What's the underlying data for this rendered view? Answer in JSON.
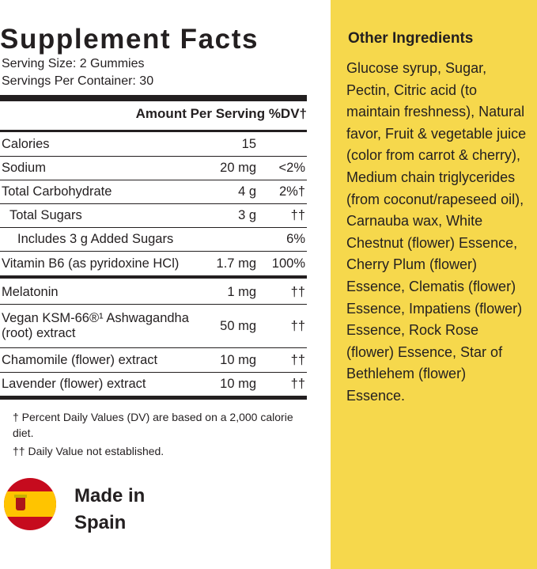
{
  "facts": {
    "title": "Supplement Facts",
    "serving_size": "Serving Size: 2 Gummies",
    "servings_per_container": "Servings Per Container: 30",
    "header": {
      "amount": "Amount Per Serving",
      "dv": "%DV†"
    },
    "rows": [
      {
        "name": "Calories",
        "amount": "15"
      },
      {
        "name": "Sodium",
        "amount": "20 mg",
        "dv": "<2%"
      },
      {
        "name": "Total Carbohydrate",
        "amount": "4 g",
        "dv": "2%†"
      },
      {
        "name": "Total Sugars",
        "amount": "3 g",
        "dv": "††"
      },
      {
        "name": "Includes 3 g Added Sugars",
        "dv": "6%"
      },
      {
        "name": "Vitamin B6 (as pyridoxine HCl)",
        "amount": "1.7 mg",
        "dv": "100%"
      },
      {
        "name": "Melatonin",
        "amount": "1 mg",
        "dv": "††"
      },
      {
        "name": "Vegan KSM-66®¹ Ashwagandha (root) extract",
        "amount": "50 mg",
        "dv": "††"
      },
      {
        "name": "Chamomile (flower) extract",
        "amount": "10 mg",
        "dv": "††"
      },
      {
        "name": "Lavender (flower) extract",
        "amount": "10 mg",
        "dv": "††"
      }
    ],
    "footnotes": [
      "† Percent Daily Values (DV) are based on a 2,000 calorie diet.",
      "†† Daily Value not established."
    ]
  },
  "origin": {
    "text": "Made in Spain"
  },
  "other_ingredients": {
    "title": "Other Ingredients",
    "text": "Glucose syrup, Sugar, Pectin, Citric acid (to maintain freshness), Natural favor, Fruit & vegetable juice (color from carrot & cherry), Medium chain triglycerides (from coconut/rapeseed oil), Carnauba wax, White Chestnut (flower) Essence, Cherry Plum (flower) Essence, Clematis (flower) Essence, Impatiens (flower) Essence, Rock Rose (flower) Essence, Star of Bethlehem (flower) Essence."
  }
}
